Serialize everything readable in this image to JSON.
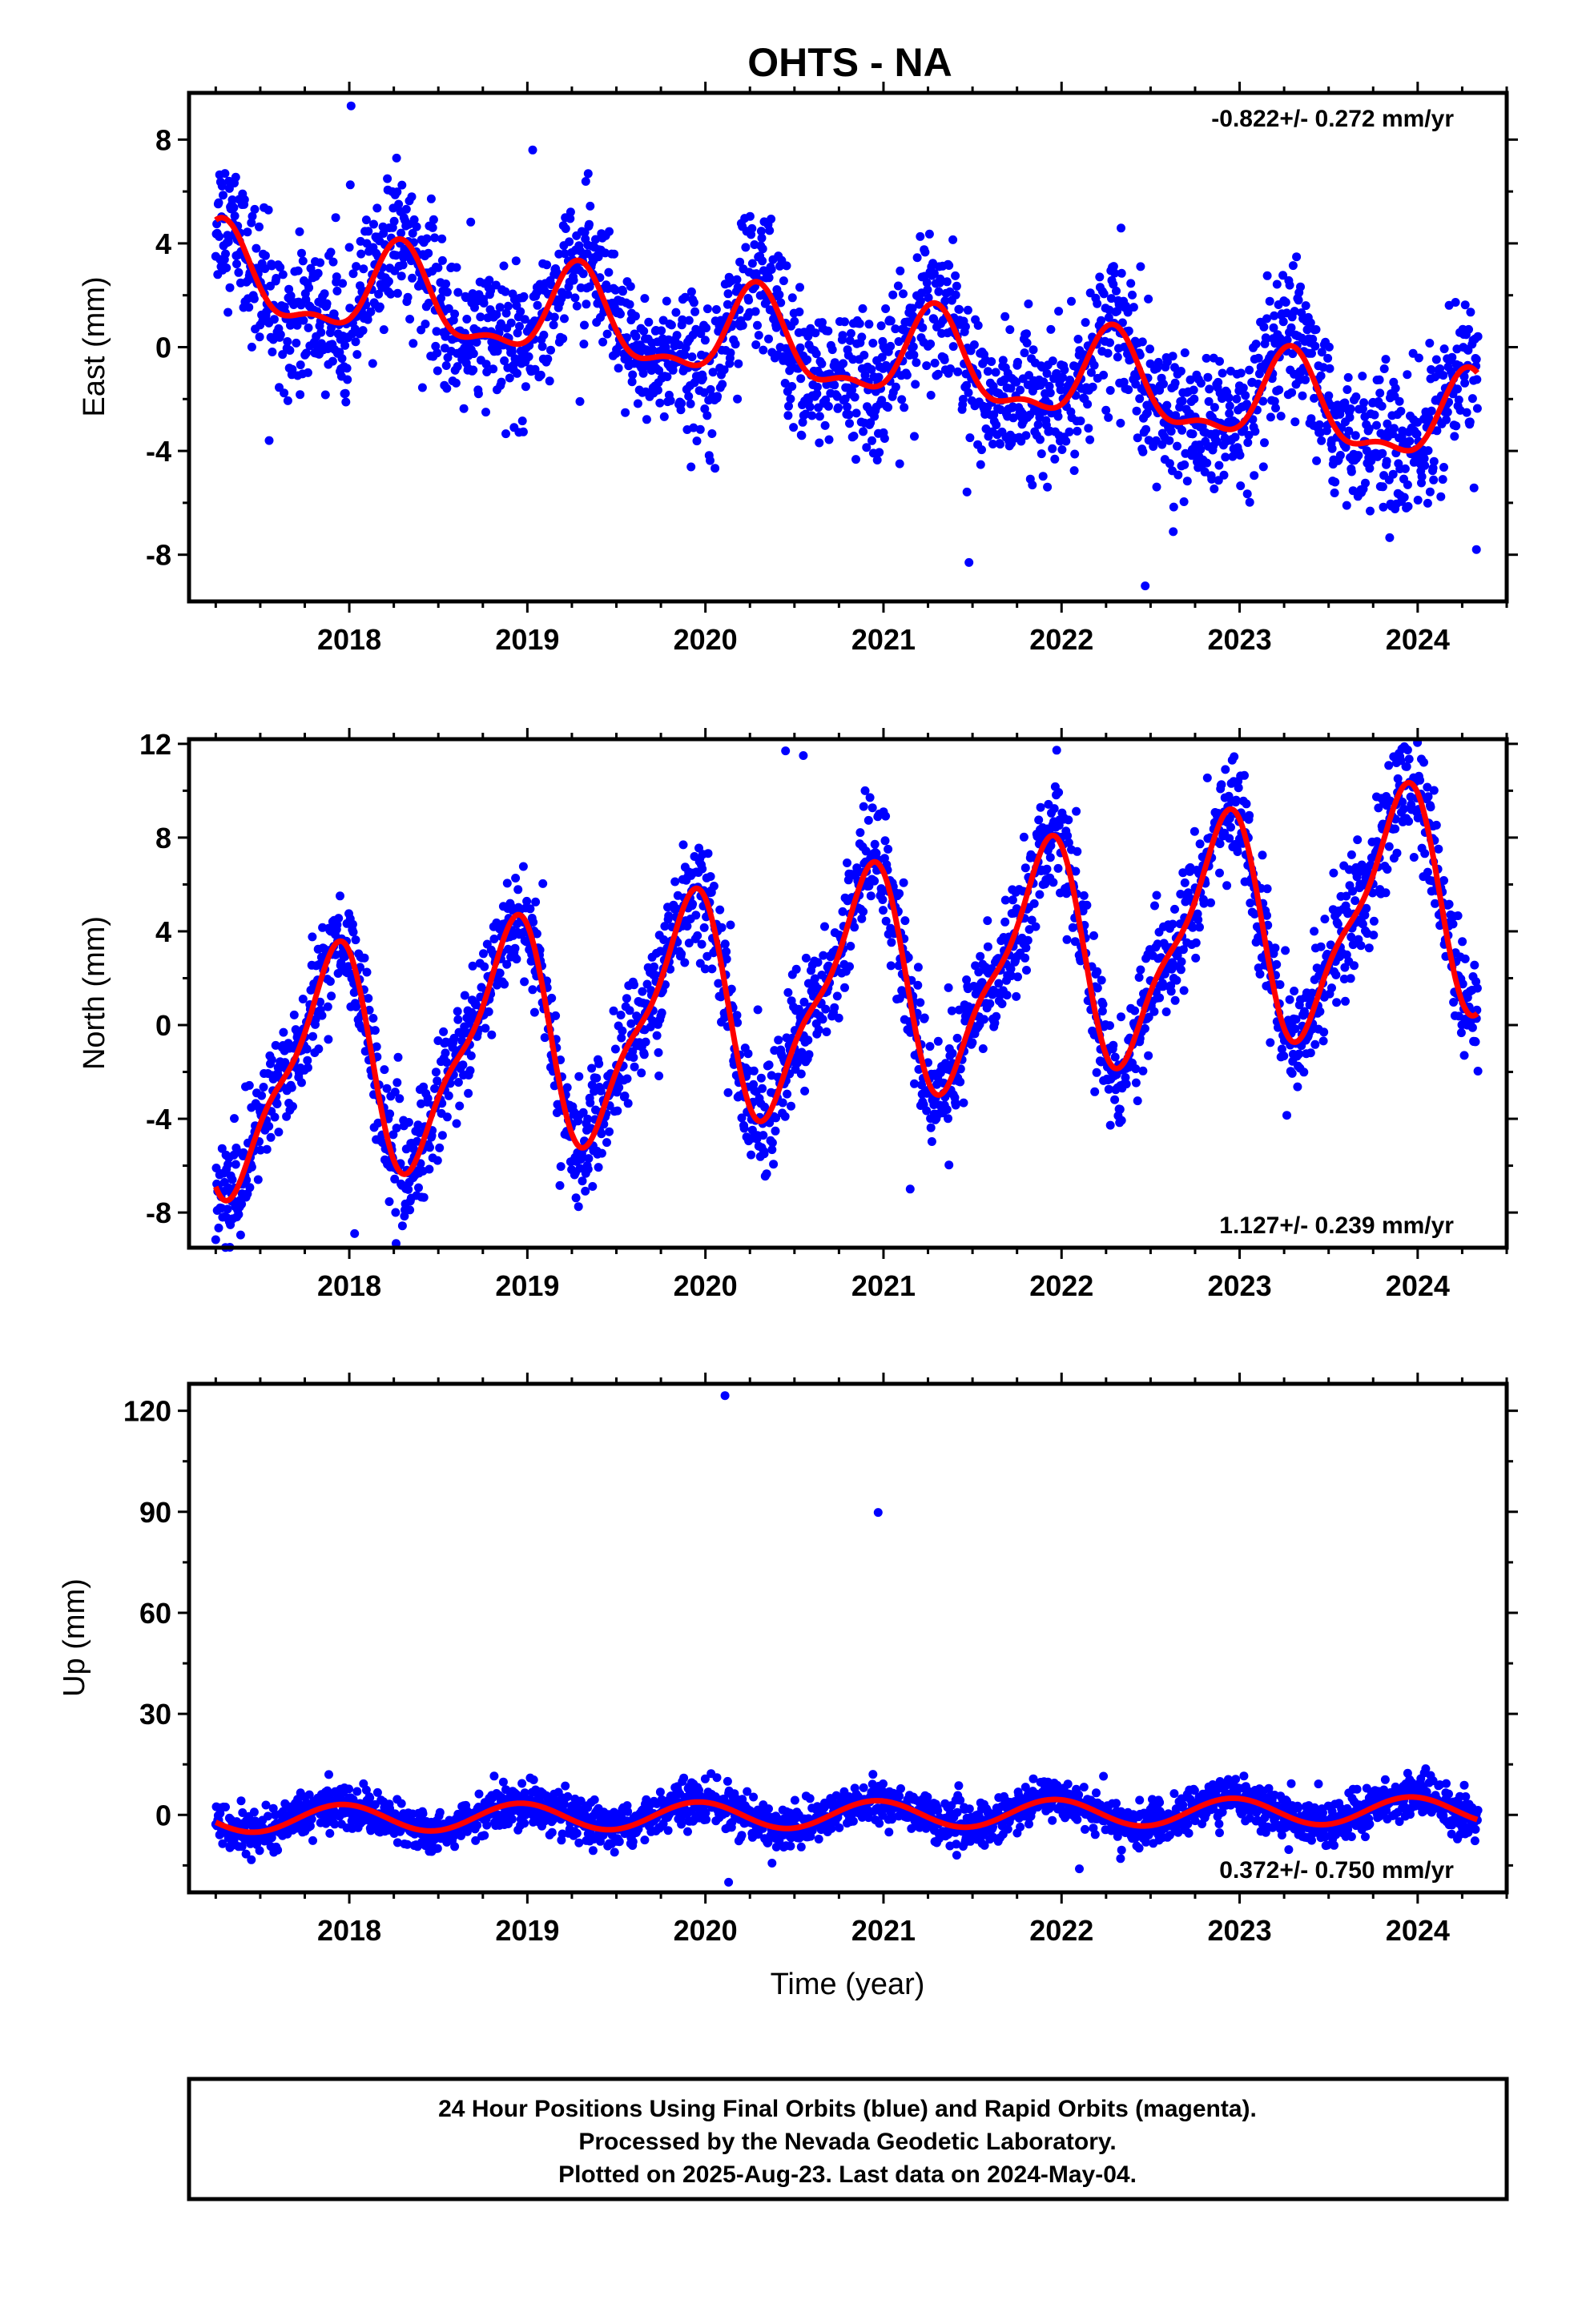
{
  "title": "OHTS - NA",
  "x_axis_label": "Time (year)",
  "footer_lines": [
    "24 Hour Positions Using Final Orbits (blue) and Rapid Orbits (magenta).",
    "Processed by the Nevada Geodetic Laboratory.",
    "Plotted on 2025-Aug-23. Last data on 2024-May-04."
  ],
  "colors": {
    "points": "#0000ff",
    "model": "#ff0000",
    "frame": "#000000"
  },
  "chart_data": [
    {
      "type": "scatter",
      "ylabel": "East (mm)",
      "rate_label": "-0.822+/- 0.272 mm/yr",
      "rate_position": "top-right",
      "xlim": [
        2017.1,
        2024.5
      ],
      "ylim": [
        -9.8,
        9.8
      ],
      "xticks": [
        2018,
        2019,
        2020,
        2021,
        2022,
        2023,
        2024
      ],
      "yticks": [
        8,
        4,
        0,
        -4,
        -8
      ],
      "model": {
        "offset": 2.7,
        "rate": -0.822,
        "annual_cos": 1.6,
        "annual_sin": 0.4,
        "semi_cos": 0.6,
        "semi_sin": 0.3,
        "t0": 2017.25
      },
      "scatter_sigma": 1.35,
      "outliers": [
        {
          "x": 2018.01,
          "y": 9.3
        },
        {
          "x": 2017.55,
          "y": -3.6
        },
        {
          "x": 2021.0,
          "y": -3.3
        },
        {
          "x": 2021.48,
          "y": -8.3
        },
        {
          "x": 2022.47,
          "y": -9.2
        },
        {
          "x": 2024.33,
          "y": -7.8
        },
        {
          "x": 2019.03,
          "y": 7.6
        }
      ],
      "series": [
        {
          "name": "24 Hour Positions Using Final Orbits (blue)"
        }
      ]
    },
    {
      "type": "scatter",
      "ylabel": "North (mm)",
      "rate_label": "1.127+/- 0.239 mm/yr",
      "rate_position": "bottom-right",
      "xlim": [
        2017.1,
        2024.5
      ],
      "ylim": [
        -9.5,
        12.2
      ],
      "xticks": [
        2018,
        2019,
        2020,
        2021,
        2022,
        2023,
        2024
      ],
      "yticks": [
        12,
        8,
        4,
        0,
        -4,
        -8
      ],
      "model": {
        "offset": -2.5,
        "rate": 1.127,
        "annual_cos": -3.0,
        "annual_sin": -3.4,
        "semi_cos": -1.4,
        "semi_sin": 0.0,
        "t0": 2017.25
      },
      "scatter_sigma": 1.25,
      "outliers": [
        {
          "x": 2020.45,
          "y": 11.7
        },
        {
          "x": 2020.55,
          "y": 11.5
        },
        {
          "x": 2021.0,
          "y": 9.1
        },
        {
          "x": 2018.03,
          "y": -8.9
        },
        {
          "x": 2021.15,
          "y": -7.0
        }
      ],
      "series": [
        {
          "name": "24 Hour Positions Using Final Orbits (blue)"
        }
      ]
    },
    {
      "type": "scatter",
      "ylabel": "Up (mm)",
      "rate_label": "0.372+/- 0.750 mm/yr",
      "rate_position": "bottom-right",
      "xlim": [
        2017.1,
        2024.5
      ],
      "ylim": [
        -23,
        128
      ],
      "xticks": [
        2018,
        2019,
        2020,
        2021,
        2022,
        2023,
        2024
      ],
      "yticks": [
        120,
        90,
        60,
        30,
        0
      ],
      "model": {
        "offset": -1.2,
        "rate": 0.372,
        "annual_cos": -1.0,
        "annual_sin": -3.9,
        "semi_cos": 0.0,
        "semi_sin": 0.0,
        "t0": 2017.25
      },
      "scatter_sigma": 3.2,
      "outliers": [
        {
          "x": 2020.11,
          "y": 124.5
        },
        {
          "x": 2020.97,
          "y": 89.8
        },
        {
          "x": 2020.13,
          "y": -20
        },
        {
          "x": 2022.1,
          "y": -16
        }
      ],
      "series": [
        {
          "name": "24 Hour Positions Using Final Orbits (blue)"
        }
      ]
    }
  ]
}
